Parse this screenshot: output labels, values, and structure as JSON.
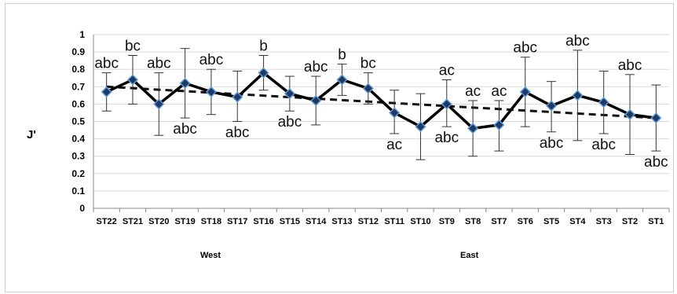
{
  "chart_data": {
    "type": "line",
    "ylabel": "J'",
    "ylim": [
      0,
      1
    ],
    "yticks": [
      "0",
      "0.1",
      "0.2",
      "0.3",
      "0.4",
      "0.5",
      "0.6",
      "0.7",
      "0.8",
      "0.9",
      "1"
    ],
    "grid": true,
    "categories": [
      "ST22",
      "ST21",
      "ST20",
      "ST19",
      "ST18",
      "ST17",
      "ST16",
      "ST15",
      "ST14",
      "ST13",
      "ST12",
      "ST11",
      "ST10",
      "ST9",
      "ST8",
      "ST7",
      "ST6",
      "ST5",
      "ST4",
      "ST3",
      "ST2",
      "ST1"
    ],
    "values": [
      0.67,
      0.74,
      0.6,
      0.72,
      0.67,
      0.64,
      0.78,
      0.66,
      0.62,
      0.74,
      0.69,
      0.55,
      0.47,
      0.6,
      0.46,
      0.48,
      0.67,
      0.59,
      0.65,
      0.61,
      0.54,
      0.52
    ],
    "error_upper": [
      0.78,
      0.88,
      0.78,
      0.92,
      0.8,
      0.79,
      0.88,
      0.76,
      0.76,
      0.83,
      0.78,
      0.68,
      0.66,
      0.74,
      0.62,
      0.62,
      0.87,
      0.73,
      0.91,
      0.79,
      0.77,
      0.71
    ],
    "error_lower": [
      0.56,
      0.6,
      0.42,
      0.52,
      0.54,
      0.5,
      0.68,
      0.56,
      0.48,
      0.65,
      0.6,
      0.43,
      0.28,
      0.47,
      0.3,
      0.33,
      0.47,
      0.44,
      0.39,
      0.43,
      0.31,
      0.33
    ],
    "trendline": [
      0.7,
      0.52
    ],
    "annotations_above": [
      "abc",
      "bc",
      "abc",
      "",
      "abc",
      "",
      "b",
      "",
      "abc",
      "b",
      "bc",
      "",
      "",
      "ac",
      "ac",
      "ac",
      "abc",
      "",
      "abc",
      "",
      "abc",
      ""
    ],
    "annotations_below": [
      "",
      "",
      "",
      "abc",
      "",
      "abc",
      "",
      "abc",
      "",
      "",
      "",
      "ac",
      "",
      "abc",
      "",
      "",
      "",
      "abc",
      "",
      "abc",
      "",
      "abc"
    ],
    "groups": [
      "West",
      "East"
    ]
  }
}
